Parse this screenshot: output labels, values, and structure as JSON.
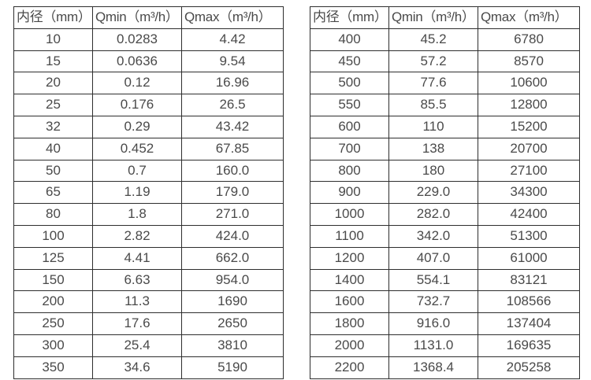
{
  "colors": {
    "background": "#ffffff",
    "table_border": "#2e2e2e",
    "text": "#4a4a4a"
  },
  "tables": [
    {
      "name": "flow-range-table-left",
      "headers": [
        "内径（mm）",
        "Qmin（m³/h）",
        "Qmax（m³/h）"
      ],
      "rows": [
        [
          "10",
          "0.0283",
          "4.42"
        ],
        [
          "15",
          "0.0636",
          "9.54"
        ],
        [
          "20",
          "0.12",
          "16.96"
        ],
        [
          "25",
          "0.176",
          "26.5"
        ],
        [
          "32",
          "0.29",
          "43.42"
        ],
        [
          "40",
          "0.452",
          "67.85"
        ],
        [
          "50",
          "0.7",
          "160.0"
        ],
        [
          "65",
          "1.19",
          "179.0"
        ],
        [
          "80",
          "1.8",
          "271.0"
        ],
        [
          "100",
          "2.82",
          "424.0"
        ],
        [
          "125",
          "4.41",
          "662.0"
        ],
        [
          "150",
          "6.63",
          "954.0"
        ],
        [
          "200",
          "11.3",
          "1690"
        ],
        [
          "250",
          "17.6",
          "2650"
        ],
        [
          "300",
          "25.4",
          "3810"
        ],
        [
          "350",
          "34.6",
          "5190"
        ]
      ]
    },
    {
      "name": "flow-range-table-right",
      "headers": [
        "内径（mm）",
        "Qmin（m³/h）",
        "Qmax（m³/h）"
      ],
      "rows": [
        [
          "400",
          "45.2",
          "6780"
        ],
        [
          "450",
          "57.2",
          "8570"
        ],
        [
          "500",
          "77.6",
          "10600"
        ],
        [
          "550",
          "85.5",
          "12800"
        ],
        [
          "600",
          "110",
          "15200"
        ],
        [
          "700",
          "138",
          "20700"
        ],
        [
          "800",
          "180",
          "27100"
        ],
        [
          "900",
          "229.0",
          "34300"
        ],
        [
          "1000",
          "282.0",
          "42400"
        ],
        [
          "1100",
          "342.0",
          "51300"
        ],
        [
          "1200",
          "407.0",
          "61000"
        ],
        [
          "1400",
          "554.1",
          "83121"
        ],
        [
          "1600",
          "732.7",
          "108566"
        ],
        [
          "1800",
          "916.0",
          "137404"
        ],
        [
          "2000",
          "1131.0",
          "169635"
        ],
        [
          "2200",
          "1368.4",
          "205258"
        ]
      ]
    }
  ]
}
